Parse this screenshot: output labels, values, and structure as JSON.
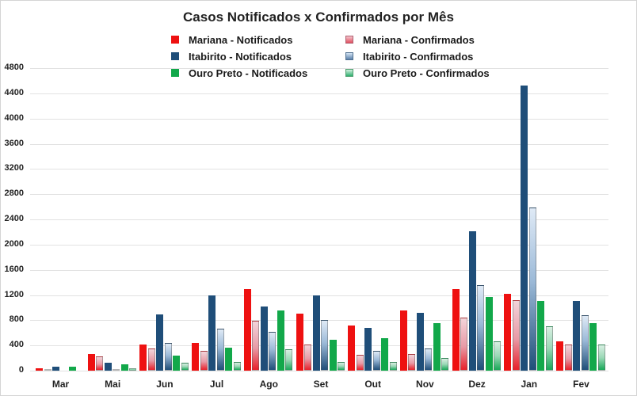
{
  "chart_data": {
    "type": "bar",
    "title": "Casos Notificados x Confirmados por Mês",
    "xlabel": "",
    "ylabel": "",
    "ylim": [
      0,
      4800
    ],
    "yticks": [
      0,
      400,
      800,
      1200,
      1600,
      2000,
      2400,
      2800,
      3200,
      3600,
      4000,
      4400,
      4800
    ],
    "grid": true,
    "legend_position": "top",
    "categories": [
      "Mar",
      "Mai",
      "Jun",
      "Jul",
      "Ago",
      "Set",
      "Out",
      "Nov",
      "Dez",
      "Jan",
      "Fev"
    ],
    "series": [
      {
        "name": "Mariana - Notificados",
        "color": "#ee1111",
        "style": "solid",
        "values": [
          40,
          270,
          410,
          440,
          1290,
          900,
          720,
          960,
          1290,
          1220,
          470
        ]
      },
      {
        "name": "Mariana - Confirmados",
        "color": "#e06070",
        "style": "gradient",
        "values": [
          10,
          220,
          350,
          310,
          790,
          420,
          250,
          260,
          840,
          1120,
          420
        ]
      },
      {
        "name": "Itabirito - Notificados",
        "color": "#1f4e79",
        "style": "solid",
        "values": [
          60,
          120,
          890,
          1190,
          1020,
          1190,
          680,
          920,
          2210,
          4520,
          1100
        ]
      },
      {
        "name": "Itabirito - Confirmados",
        "color": "#8fb4d9",
        "style": "gradient",
        "values": [
          0,
          30,
          440,
          670,
          620,
          800,
          320,
          350,
          1360,
          2590,
          880
        ]
      },
      {
        "name": "Ouro Preto - Notificados",
        "color": "#12a84a",
        "style": "solid",
        "values": [
          60,
          100,
          240,
          370,
          950,
          490,
          510,
          760,
          1170,
          1110,
          760
        ]
      },
      {
        "name": "Ouro Preto - Confirmados",
        "color": "#7fd3a8",
        "style": "gradient",
        "values": [
          0,
          40,
          130,
          140,
          340,
          140,
          140,
          200,
          460,
          700,
          410
        ]
      }
    ]
  },
  "legend": {
    "items": [
      {
        "label": "Mariana - Notificados",
        "color": "#ee1111"
      },
      {
        "label": "Mariana - Confirmados",
        "color": "#e06070"
      },
      {
        "label": "Itabirito - Notificados",
        "color": "#1f4e79"
      },
      {
        "label": "Itabirito - Confirmados",
        "color": "#8fb4d9"
      },
      {
        "label": "Ouro Preto - Notificados",
        "color": "#12a84a"
      },
      {
        "label": "Ouro Preto - Confirmados",
        "color": "#7fd3a8"
      }
    ]
  }
}
